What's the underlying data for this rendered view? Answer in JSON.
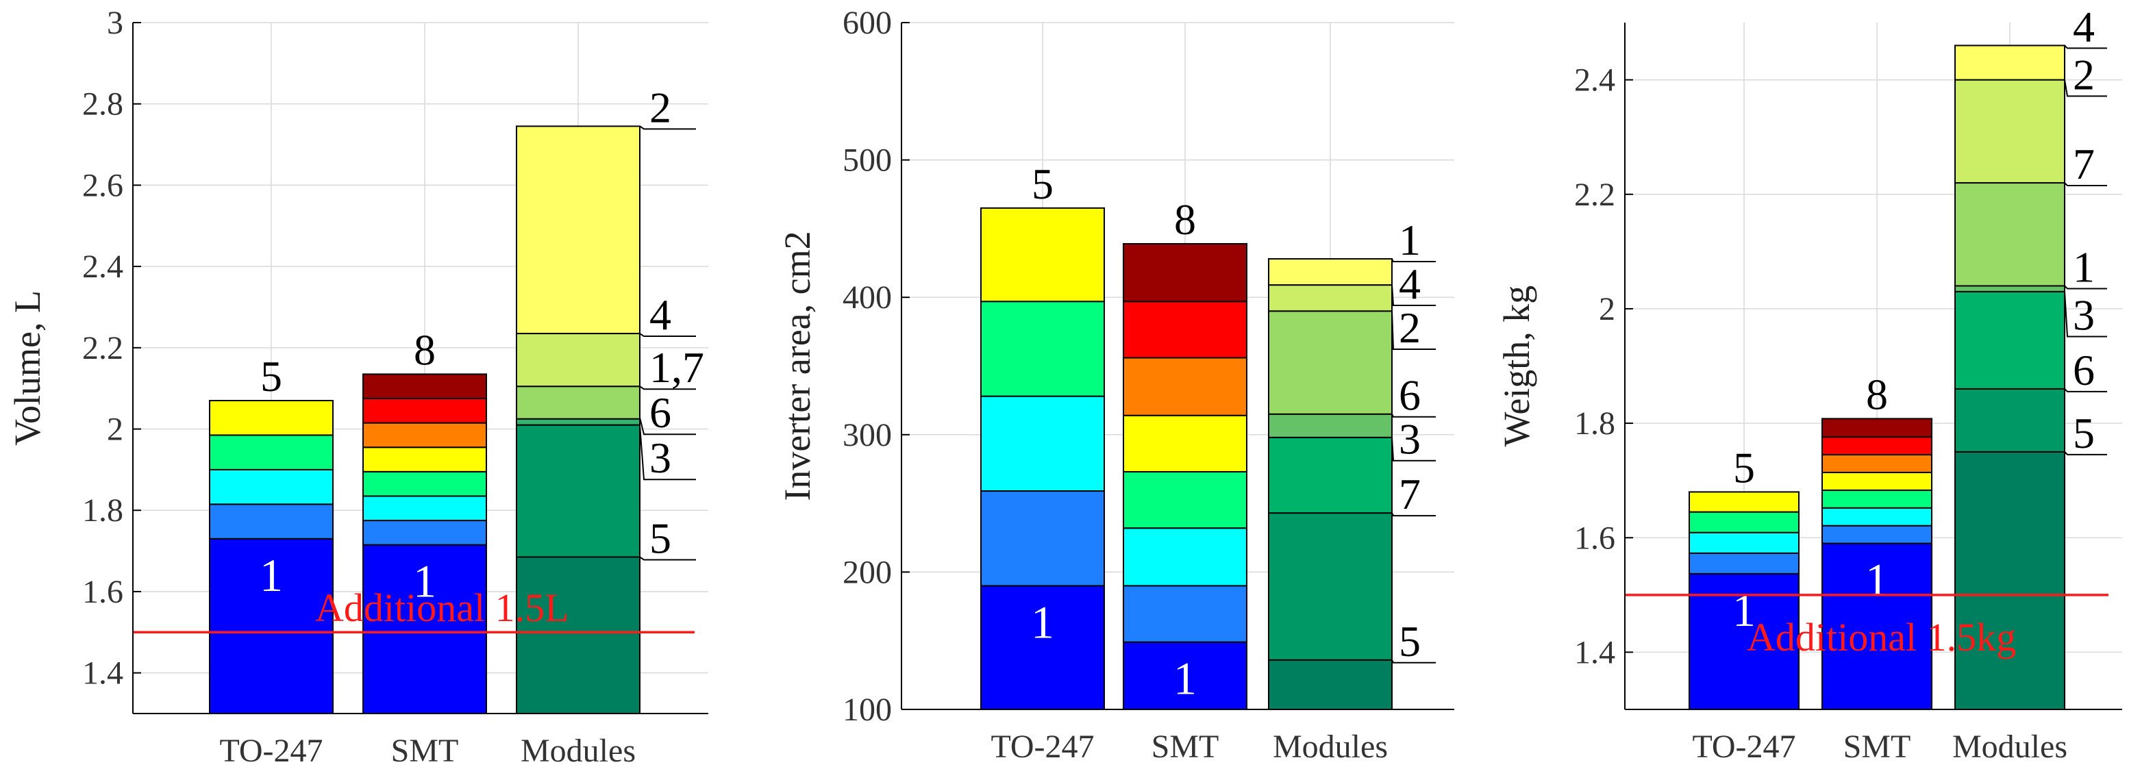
{
  "chart_data": [
    {
      "type": "bar",
      "stacked": true,
      "ylabel": "Volume, L",
      "ylim": [
        1.3,
        3.0
      ],
      "yticks": [
        1.4,
        1.6,
        1.8,
        2.0,
        2.2,
        2.4,
        2.6,
        2.8,
        3.0
      ],
      "ytick_labels": [
        "1.4",
        "1.6",
        "1.8",
        "2",
        "2.2",
        "2.4",
        "2.6",
        "2.8",
        "3"
      ],
      "categories": [
        "TO-247",
        "SMT",
        "Modules"
      ],
      "grid": true,
      "bars": [
        {
          "category": "TO-247",
          "top_label": "5",
          "inner_label": "1",
          "segments": [
            {
              "id": "1",
              "value": 1.73,
              "color": "#0000ff"
            },
            {
              "id": "2",
              "value": 1.815,
              "color": "#1e7fff"
            },
            {
              "id": "3",
              "value": 1.9,
              "color": "#00ffff"
            },
            {
              "id": "4",
              "value": 1.985,
              "color": "#00ff7f"
            },
            {
              "id": "5",
              "value": 2.07,
              "color": "#ffff00"
            }
          ]
        },
        {
          "category": "SMT",
          "top_label": "8",
          "inner_label": "1",
          "segments": [
            {
              "id": "1",
              "value": 1.715,
              "color": "#0000ff"
            },
            {
              "id": "2",
              "value": 1.775,
              "color": "#1e7fff"
            },
            {
              "id": "3",
              "value": 1.835,
              "color": "#00ffff"
            },
            {
              "id": "4",
              "value": 1.895,
              "color": "#00ff7f"
            },
            {
              "id": "5",
              "value": 1.955,
              "color": "#ffff00"
            },
            {
              "id": "6",
              "value": 2.015,
              "color": "#ff8000"
            },
            {
              "id": "7",
              "value": 2.075,
              "color": "#ff0000"
            },
            {
              "id": "8",
              "value": 2.135,
              "color": "#990000"
            }
          ]
        },
        {
          "category": "Modules",
          "segments": [
            {
              "id": "5",
              "value": 1.685,
              "color": "#007f5f"
            },
            {
              "id": "3",
              "value": 2.01,
              "color": "#009966"
            },
            {
              "id": "6",
              "value": 2.025,
              "color": "#33b36b"
            },
            {
              "id": "1,7",
              "value": 2.105,
              "color": "#99d966"
            },
            {
              "id": "4",
              "value": 2.235,
              "color": "#ccee66"
            },
            {
              "id": "2",
              "value": 2.745,
              "color": "#ffff66"
            }
          ]
        }
      ],
      "callouts": [
        {
          "label": "2",
          "at": 2.745
        },
        {
          "label": "4",
          "at": 2.235
        },
        {
          "label": "1,7",
          "at": 2.105
        },
        {
          "label": "6",
          "at": 2.028
        },
        {
          "label": "3",
          "at": 2.01
        },
        {
          "label": "5",
          "at": 1.685
        }
      ],
      "reference_line": {
        "value": 1.5,
        "label": "Additional 1.5L"
      }
    },
    {
      "type": "bar",
      "stacked": true,
      "ylabel": "Inverter area, cm2",
      "ylim": [
        100,
        600
      ],
      "yticks": [
        100,
        200,
        300,
        400,
        500,
        600
      ],
      "ytick_labels": [
        "100",
        "200",
        "300",
        "400",
        "500",
        "600"
      ],
      "categories": [
        "TO-247",
        "SMT",
        "Modules"
      ],
      "grid": true,
      "bars": [
        {
          "category": "TO-247",
          "top_label": "5",
          "inner_label": "1",
          "segments": [
            {
              "id": "1",
              "value": 190,
              "color": "#0000ff"
            },
            {
              "id": "2",
              "value": 259,
              "color": "#1e7fff"
            },
            {
              "id": "3",
              "value": 328,
              "color": "#00ffff"
            },
            {
              "id": "4",
              "value": 397,
              "color": "#00ff7f"
            },
            {
              "id": "5",
              "value": 465,
              "color": "#ffff00"
            }
          ]
        },
        {
          "category": "SMT",
          "top_label": "8",
          "inner_label": "1",
          "segments": [
            {
              "id": "1",
              "value": 149,
              "color": "#0000ff"
            },
            {
              "id": "2",
              "value": 190,
              "color": "#1e7fff"
            },
            {
              "id": "3",
              "value": 232,
              "color": "#00ffff"
            },
            {
              "id": "4",
              "value": 273,
              "color": "#00ff7f"
            },
            {
              "id": "5",
              "value": 314,
              "color": "#ffff00"
            },
            {
              "id": "6",
              "value": 356,
              "color": "#ff8000"
            },
            {
              "id": "7",
              "value": 397,
              "color": "#ff0000"
            },
            {
              "id": "8",
              "value": 439,
              "color": "#990000"
            }
          ]
        },
        {
          "category": "Modules",
          "segments": [
            {
              "id": "5",
              "value": 136,
              "color": "#007f5f"
            },
            {
              "id": "7",
              "value": 243,
              "color": "#009966"
            },
            {
              "id": "3",
              "value": 298,
              "color": "#00b36b"
            },
            {
              "id": "6",
              "value": 315,
              "color": "#66c266"
            },
            {
              "id": "2",
              "value": 390,
              "color": "#99d966"
            },
            {
              "id": "4",
              "value": 409,
              "color": "#ccee66"
            },
            {
              "id": "1",
              "value": 428,
              "color": "#ffff66"
            }
          ]
        }
      ],
      "callouts": [
        {
          "label": "1",
          "at": 428
        },
        {
          "label": "4",
          "at": 409
        },
        {
          "label": "2",
          "at": 390
        },
        {
          "label": "6",
          "at": 315
        },
        {
          "label": "3",
          "at": 298
        },
        {
          "label": "7",
          "at": 243
        },
        {
          "label": "5",
          "at": 136
        }
      ]
    },
    {
      "type": "bar",
      "stacked": true,
      "ylabel": "Weigth, kg",
      "ylim": [
        1.3,
        2.5
      ],
      "yticks": [
        1.4,
        1.6,
        1.8,
        2.0,
        2.2,
        2.4
      ],
      "ytick_labels": [
        "1.4",
        "1.6",
        "1.8",
        "2",
        "2.2",
        "2.4"
      ],
      "categories": [
        "TO-247",
        "SMT",
        "Modules"
      ],
      "grid": true,
      "bars": [
        {
          "category": "TO-247",
          "top_label": "5",
          "inner_label": "1",
          "segments": [
            {
              "id": "1",
              "value": 1.537,
              "color": "#0000ff"
            },
            {
              "id": "2",
              "value": 1.573,
              "color": "#1e7fff"
            },
            {
              "id": "3",
              "value": 1.609,
              "color": "#00ffff"
            },
            {
              "id": "4",
              "value": 1.645,
              "color": "#00ff7f"
            },
            {
              "id": "5",
              "value": 1.68,
              "color": "#ffff00"
            }
          ]
        },
        {
          "category": "SMT",
          "top_label": "8",
          "inner_label": "1",
          "segments": [
            {
              "id": "1",
              "value": 1.59,
              "color": "#0000ff"
            },
            {
              "id": "2",
              "value": 1.621,
              "color": "#1e7fff"
            },
            {
              "id": "3",
              "value": 1.652,
              "color": "#00ffff"
            },
            {
              "id": "4",
              "value": 1.683,
              "color": "#00ff7f"
            },
            {
              "id": "5",
              "value": 1.714,
              "color": "#ffff00"
            },
            {
              "id": "6",
              "value": 1.745,
              "color": "#ff8000"
            },
            {
              "id": "7",
              "value": 1.776,
              "color": "#ff0000"
            },
            {
              "id": "8",
              "value": 1.808,
              "color": "#990000"
            }
          ]
        },
        {
          "category": "Modules",
          "segments": [
            {
              "id": "5",
              "value": 1.75,
              "color": "#007f5f"
            },
            {
              "id": "6",
              "value": 1.86,
              "color": "#009966"
            },
            {
              "id": "3",
              "value": 2.03,
              "color": "#00b36b"
            },
            {
              "id": "1",
              "value": 2.04,
              "color": "#66c266"
            },
            {
              "id": "7",
              "value": 2.22,
              "color": "#99d966"
            },
            {
              "id": "2",
              "value": 2.4,
              "color": "#ccee66"
            },
            {
              "id": "4",
              "value": 2.46,
              "color": "#ffff66"
            }
          ]
        }
      ],
      "callouts": [
        {
          "label": "4",
          "at": 2.46
        },
        {
          "label": "2",
          "at": 2.4
        },
        {
          "label": "7",
          "at": 2.22
        },
        {
          "label": "1",
          "at": 2.04
        },
        {
          "label": "3",
          "at": 2.03
        },
        {
          "label": "6",
          "at": 1.86
        },
        {
          "label": "5",
          "at": 1.75
        }
      ],
      "reference_line": {
        "value": 1.5,
        "label": "Additional 1.5kg"
      }
    }
  ]
}
